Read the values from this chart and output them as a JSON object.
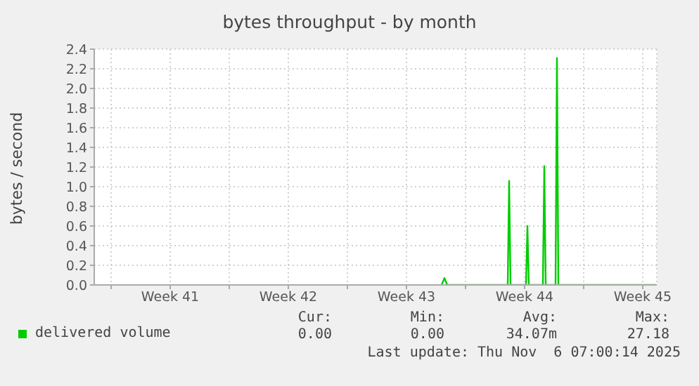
{
  "chart_data": {
    "type": "line",
    "title": "bytes throughput - by month",
    "ylabel": "bytes / second",
    "xlim": [
      "2025-10-05",
      "2025-11-07T08:00"
    ],
    "xticks": [
      {
        "value": "2025-10-06",
        "label": null
      },
      {
        "value": "2025-10-09T12:00",
        "label": "Week 41"
      },
      {
        "value": "2025-10-13",
        "label": null
      },
      {
        "value": "2025-10-16T12:00",
        "label": "Week 42"
      },
      {
        "value": "2025-10-20",
        "label": null
      },
      {
        "value": "2025-10-23T12:00",
        "label": "Week 43"
      },
      {
        "value": "2025-10-27",
        "label": null
      },
      {
        "value": "2025-10-30T12:00",
        "label": "Week 44"
      },
      {
        "value": "2025-11-03",
        "label": null
      },
      {
        "value": "2025-11-06T12:00",
        "label": "Week 45"
      }
    ],
    "ylim": [
      0,
      2.4
    ],
    "yticks": [
      {
        "value": 0,
        "label": "0.0"
      },
      0.2,
      0.4,
      0.6,
      0.8,
      {
        "value": 1,
        "label": "1.0"
      },
      1.2,
      1.4,
      1.6,
      1.8,
      {
        "value": 2,
        "label": "2.0"
      },
      2.2,
      2.4
    ],
    "x": [
      "2025-10-25T14:00",
      "2025-10-25T18:00",
      "2025-10-25T22:00",
      "2025-10-29T12:00",
      "2025-10-29T14:00",
      "2025-10-29T16:00",
      "2025-10-30T14:00",
      "2025-10-30T16:00",
      "2025-10-30T18:00",
      "2025-10-31T14:00",
      "2025-10-31T16:00",
      "2025-10-31T18:00",
      "2025-11-01T08:00",
      "2025-11-01T10:00",
      "2025-11-01T12:00",
      "2025-11-07T06:00"
    ],
    "series": [
      {
        "name": "delivered volume",
        "color": "#00cc00",
        "values": [
          0,
          0.07,
          0,
          0,
          1.06,
          0,
          0,
          0.6,
          0,
          0,
          1.21,
          0,
          0,
          2.31,
          0,
          0
        ]
      }
    ],
    "grid": true,
    "legend": "bottom",
    "annotations": [
      "Cur:",
      "Min:",
      "Avg:",
      "Max:",
      "0.00",
      "0.00",
      "34.07m",
      "27.18",
      "Last update: Thu Nov  6 07:00:14 2025"
    ]
  }
}
